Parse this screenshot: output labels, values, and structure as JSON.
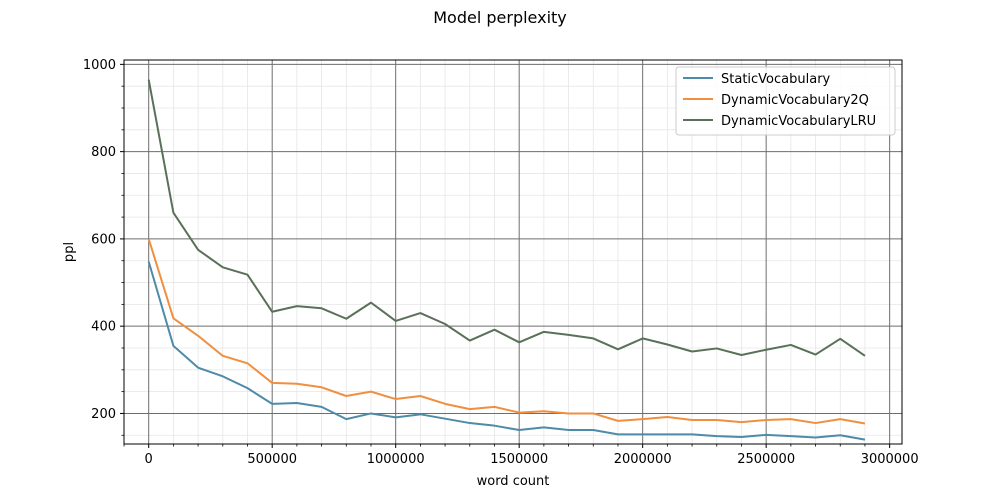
{
  "chart_data": {
    "type": "line",
    "title": "Model perplexity",
    "xlabel": "word count",
    "ylabel": "ppl",
    "xlim": [
      -100000,
      3050000
    ],
    "ylim": [
      130,
      1010
    ],
    "xticks": [
      0,
      500000,
      1000000,
      1500000,
      2000000,
      2500000,
      3000000
    ],
    "xtick_labels": [
      "0",
      "500000",
      "1000000",
      "1500000",
      "2000000",
      "2500000",
      "3000000"
    ],
    "yticks": [
      200,
      400,
      600,
      800,
      1000
    ],
    "ytick_labels": [
      "200",
      "400",
      "600",
      "800",
      "1000"
    ],
    "grid": true,
    "legend_position": "top-right",
    "x": [
      0,
      100000,
      200000,
      300000,
      400000,
      500000,
      600000,
      700000,
      800000,
      900000,
      1000000,
      1100000,
      1200000,
      1300000,
      1400000,
      1500000,
      1600000,
      1700000,
      1800000,
      1900000,
      2000000,
      2100000,
      2200000,
      2300000,
      2400000,
      2500000,
      2600000,
      2700000,
      2800000,
      2900000
    ],
    "series": [
      {
        "name": "StaticVocabulary",
        "color": "#4e8ba8",
        "values": [
          548,
          355,
          305,
          285,
          258,
          222,
          224,
          215,
          187,
          200,
          191,
          198,
          188,
          178,
          172,
          162,
          168,
          162,
          162,
          152,
          152,
          152,
          152,
          148,
          146,
          151,
          148,
          145,
          150,
          140
        ]
      },
      {
        "name": "DynamicVocabulary2Q",
        "color": "#ef8f3f",
        "values": [
          600,
          418,
          378,
          332,
          315,
          270,
          268,
          260,
          240,
          250,
          233,
          240,
          222,
          210,
          215,
          202,
          205,
          200,
          200,
          183,
          187,
          192,
          185,
          185,
          180,
          185,
          187,
          178,
          187,
          177
        ]
      },
      {
        "name": "DynamicVocabularyLRU",
        "color": "#5a7058",
        "values": [
          965,
          660,
          575,
          535,
          518,
          433,
          446,
          441,
          417,
          454,
          412,
          430,
          405,
          367,
          392,
          363,
          387,
          380,
          372,
          347,
          372,
          358,
          342,
          349,
          334,
          346,
          357,
          335,
          371,
          332
        ]
      }
    ]
  }
}
